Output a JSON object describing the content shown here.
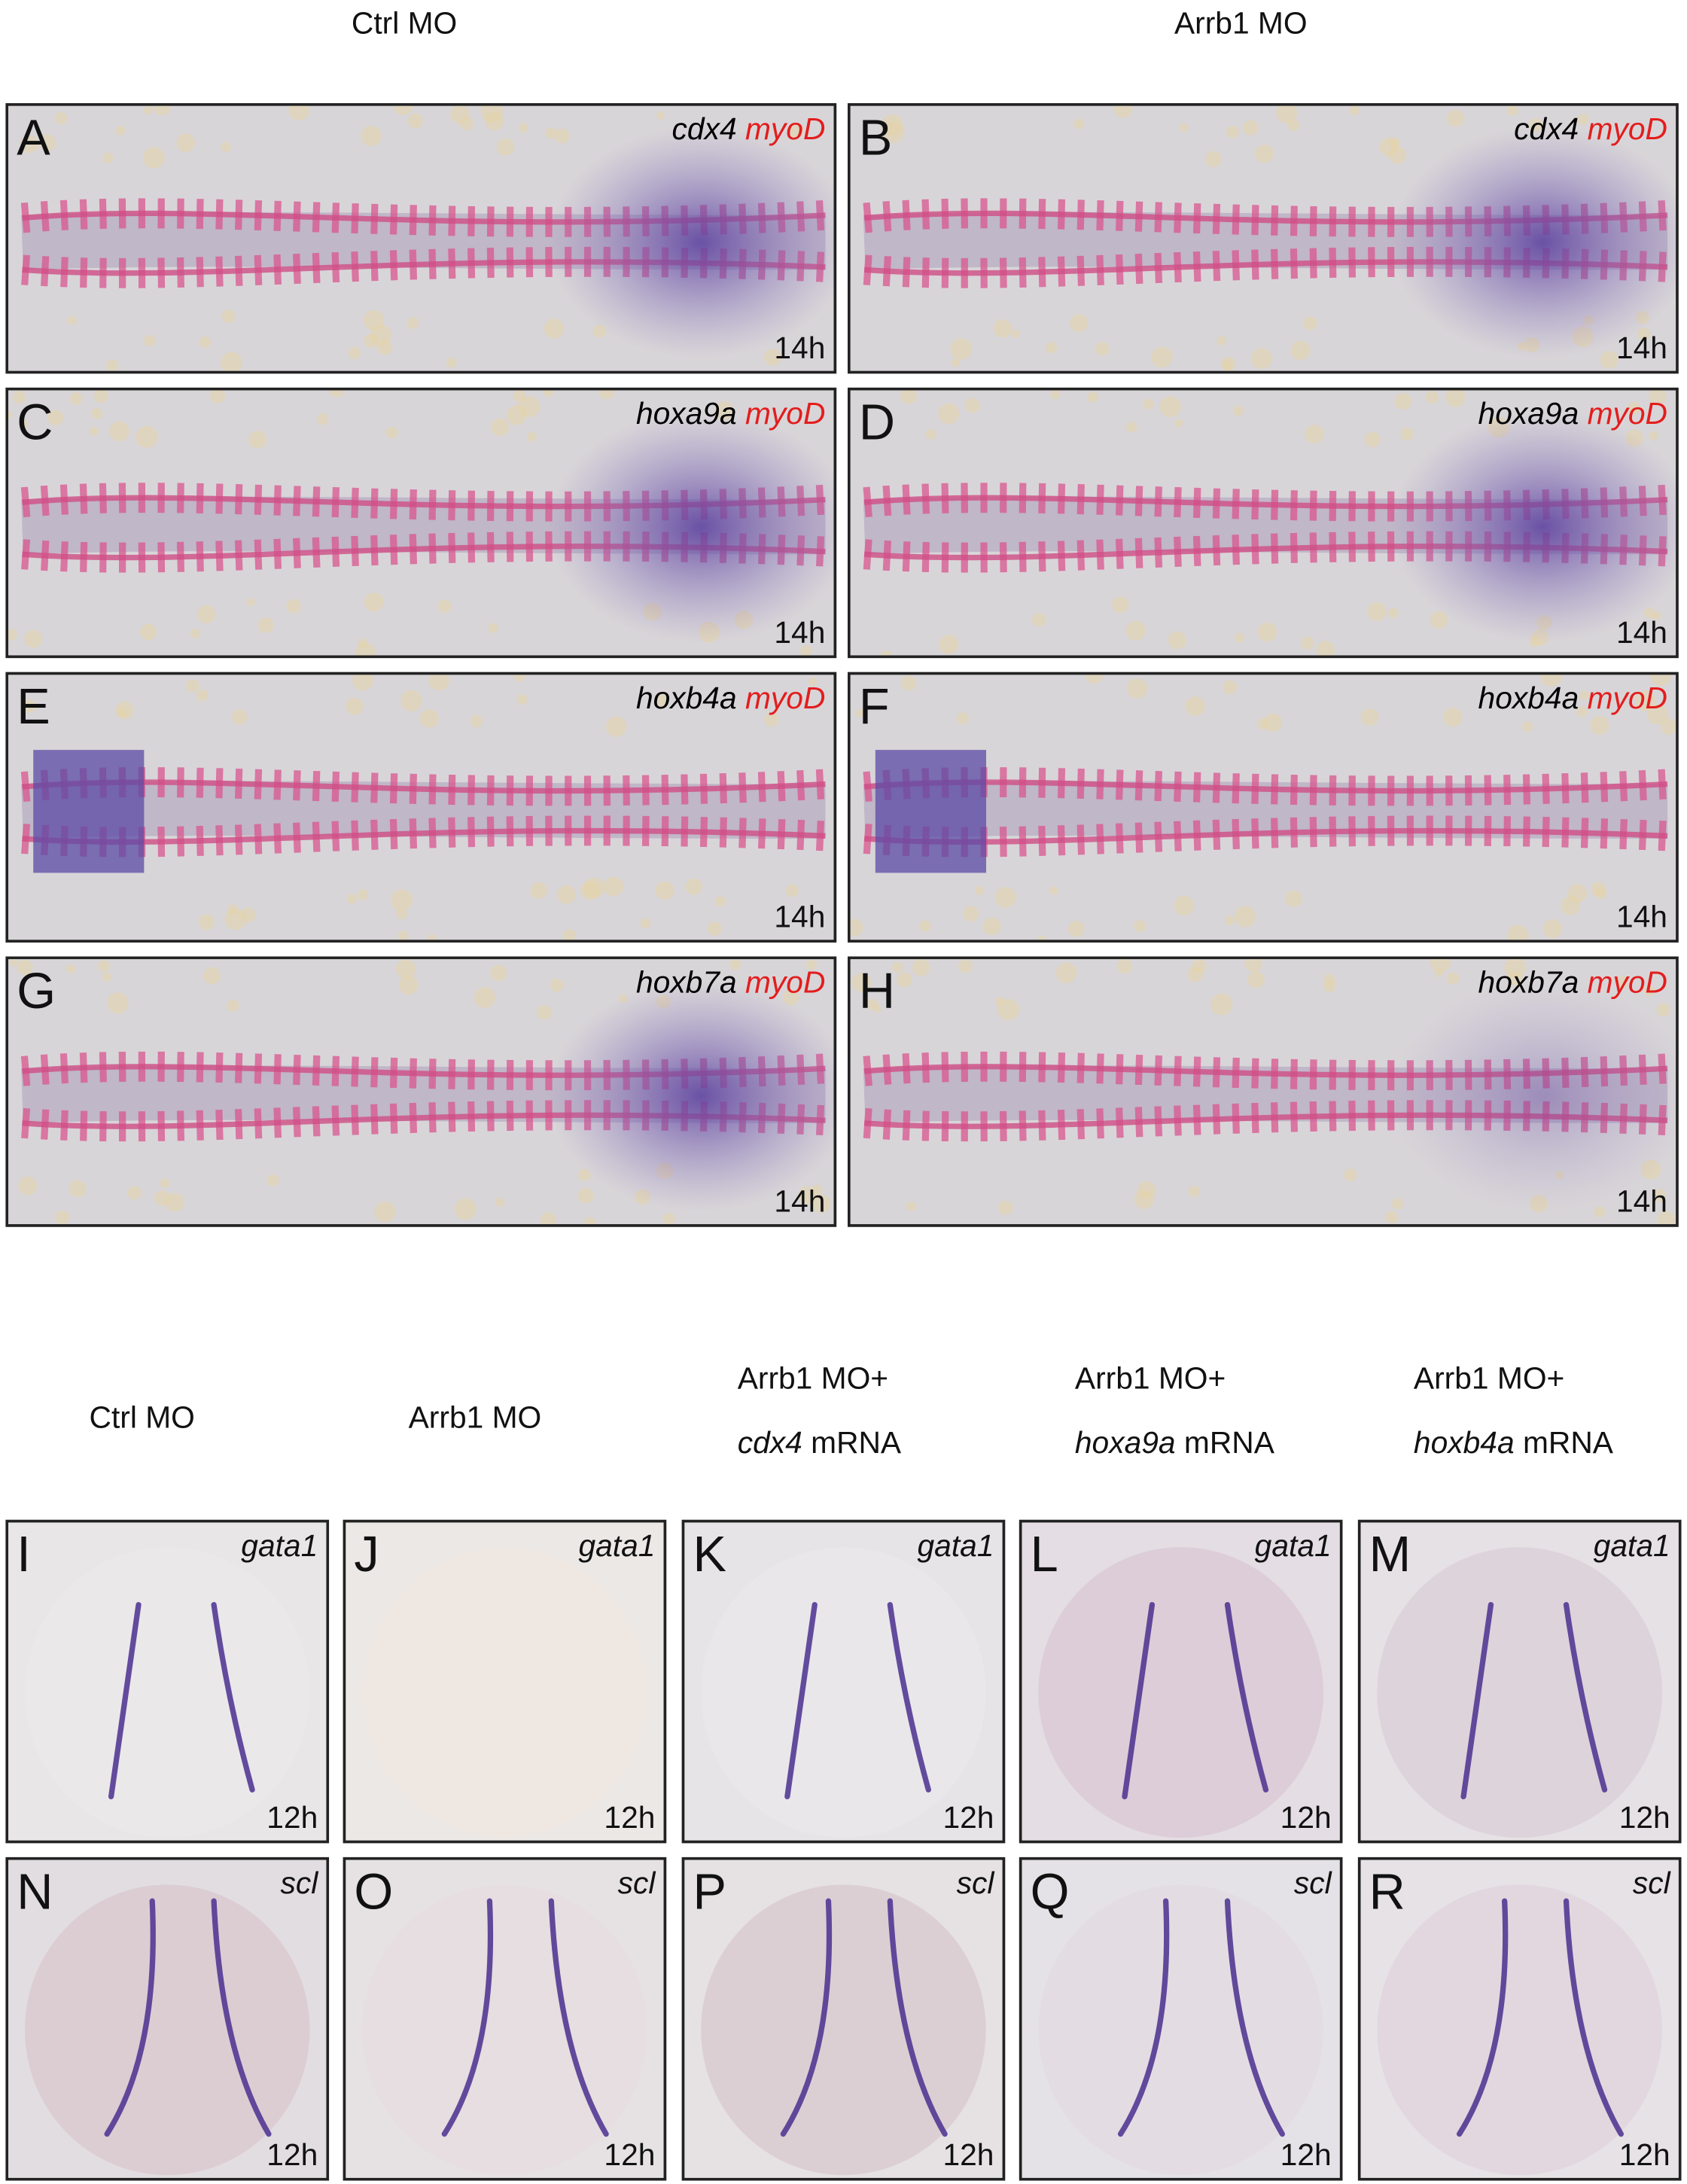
{
  "top_headers": [
    "Ctrl MO",
    "Arrb1 MO"
  ],
  "top_panels": [
    {
      "letter": "A",
      "gene": "cdx4",
      "marker": "myoD",
      "time": "14h"
    },
    {
      "letter": "B",
      "gene": "cdx4",
      "marker": "myoD",
      "time": "14h"
    },
    {
      "letter": "C",
      "gene": "hoxa9a",
      "marker": "myoD",
      "time": "14h"
    },
    {
      "letter": "D",
      "gene": "hoxa9a",
      "marker": "myoD",
      "time": "14h"
    },
    {
      "letter": "E",
      "gene": "hoxb4a",
      "marker": "myoD",
      "time": "14h"
    },
    {
      "letter": "F",
      "gene": "hoxb4a",
      "marker": "myoD",
      "time": "14h"
    },
    {
      "letter": "G",
      "gene": "hoxb7a",
      "marker": "myoD",
      "time": "14h"
    },
    {
      "letter": "H",
      "gene": "hoxb7a",
      "marker": "myoD",
      "time": "14h"
    }
  ],
  "bottom_headers": [
    {
      "line1": "Ctrl MO"
    },
    {
      "line1": "Arrb1 MO"
    },
    {
      "line1": "Arrb1 MO+",
      "gene": "cdx4",
      "line2": "mRNA"
    },
    {
      "line1": "Arrb1 MO+",
      "gene": "hoxa9a",
      "line2": "mRNA"
    },
    {
      "line1": "Arrb1 MO+",
      "gene": "hoxb4a",
      "line2": "mRNA"
    }
  ],
  "bottom_panels": [
    {
      "letter": "I",
      "gene": "gata1",
      "time": "12h"
    },
    {
      "letter": "J",
      "gene": "gata1",
      "time": "12h"
    },
    {
      "letter": "K",
      "gene": "gata1",
      "time": "12h"
    },
    {
      "letter": "L",
      "gene": "gata1",
      "time": "12h"
    },
    {
      "letter": "M",
      "gene": "gata1",
      "time": "12h"
    },
    {
      "letter": "N",
      "gene": "scl",
      "time": "12h"
    },
    {
      "letter": "O",
      "gene": "scl",
      "time": "12h"
    },
    {
      "letter": "P",
      "gene": "scl",
      "time": "12h"
    },
    {
      "letter": "Q",
      "gene": "scl",
      "time": "12h"
    },
    {
      "letter": "R",
      "gene": "scl",
      "time": "12h"
    }
  ]
}
